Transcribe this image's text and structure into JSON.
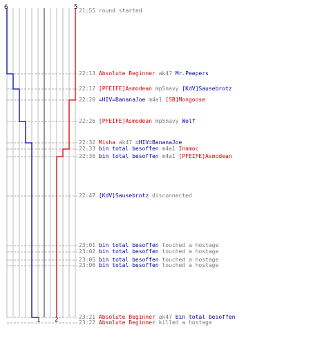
{
  "colors": {
    "red": "#cc0000",
    "blue": "#0000aa",
    "grey": "#777777",
    "grid": "#bbbbbb",
    "dash": "#aaaaaa",
    "center": "#666666"
  },
  "counts": {
    "top_left": "6",
    "top_right": "5",
    "bottom_blue": "1",
    "bottom_red": "2"
  },
  "events": [
    {
      "time": "21:55",
      "parts": [
        {
          "t": "round started",
          "c": "grey"
        }
      ]
    },
    {
      "time": "22:13",
      "parts": [
        {
          "t": "Absolute Beginner",
          "c": "red"
        },
        {
          "t": " ak47 ",
          "c": "grey"
        },
        {
          "t": "Mr.Peepers",
          "c": "blue"
        }
      ]
    },
    {
      "time": "22:17",
      "parts": [
        {
          "t": "[PFEIFE]Asmodean",
          "c": "red"
        },
        {
          "t": " mp5navy ",
          "c": "grey"
        },
        {
          "t": "[KdV]Sausebrotz",
          "c": "blue"
        }
      ]
    },
    {
      "time": "22:20",
      "parts": [
        {
          "t": "=HIV=BananaJoe",
          "c": "blue"
        },
        {
          "t": " m4a1 ",
          "c": "grey"
        },
        {
          "t": "[SB]Mongoose",
          "c": "red"
        }
      ]
    },
    {
      "time": "22:26",
      "parts": [
        {
          "t": "[PFEIFE]Asmodean",
          "c": "red"
        },
        {
          "t": " mp5navy ",
          "c": "grey"
        },
        {
          "t": "Wolf",
          "c": "blue"
        }
      ]
    },
    {
      "time": "22:32",
      "parts": [
        {
          "t": "Misha",
          "c": "red"
        },
        {
          "t": " ak47 ",
          "c": "grey"
        },
        {
          "t": "=HIV=BananaJoe",
          "c": "blue"
        }
      ]
    },
    {
      "time": "22:33",
      "parts": [
        {
          "t": "bin total besoffen",
          "c": "blue"
        },
        {
          "t": " m4a1 ",
          "c": "grey"
        },
        {
          "t": "Inamoc",
          "c": "red"
        }
      ]
    },
    {
      "time": "22:36",
      "parts": [
        {
          "t": "bin total besoffen",
          "c": "blue"
        },
        {
          "t": " m4a1 ",
          "c": "grey"
        },
        {
          "t": "[PFEIFE]Asmodean",
          "c": "red"
        }
      ]
    },
    {
      "time": "22:47",
      "parts": [
        {
          "t": "[KdV]Sausebrotz",
          "c": "blue"
        },
        {
          "t": " disconnected",
          "c": "grey"
        }
      ]
    },
    {
      "time": "23:01",
      "parts": [
        {
          "t": "bin total besoffen",
          "c": "blue"
        },
        {
          "t": " touched a hostage",
          "c": "grey"
        }
      ]
    },
    {
      "time": "23:02",
      "parts": [
        {
          "t": "bin total besoffen",
          "c": "blue"
        },
        {
          "t": " touched a hostage",
          "c": "grey"
        }
      ]
    },
    {
      "time": "23:05",
      "parts": [
        {
          "t": "bin total besoffen",
          "c": "blue"
        },
        {
          "t": " touched a hostage",
          "c": "grey"
        }
      ]
    },
    {
      "time": "23:06",
      "parts": [
        {
          "t": "bin total besoffen",
          "c": "blue"
        },
        {
          "t": " touched a hostage",
          "c": "grey"
        }
      ]
    },
    {
      "time": "23:21",
      "parts": [
        {
          "t": "Absolute Beginner",
          "c": "red"
        },
        {
          "t": " ak47 ",
          "c": "grey"
        },
        {
          "t": "bin total besoffen",
          "c": "blue"
        }
      ]
    },
    {
      "time": "23:22",
      "parts": [
        {
          "t": "Absolute Beginner",
          "c": "red"
        },
        {
          "t": " killed a hostage",
          "c": "grey"
        }
      ]
    }
  ]
}
